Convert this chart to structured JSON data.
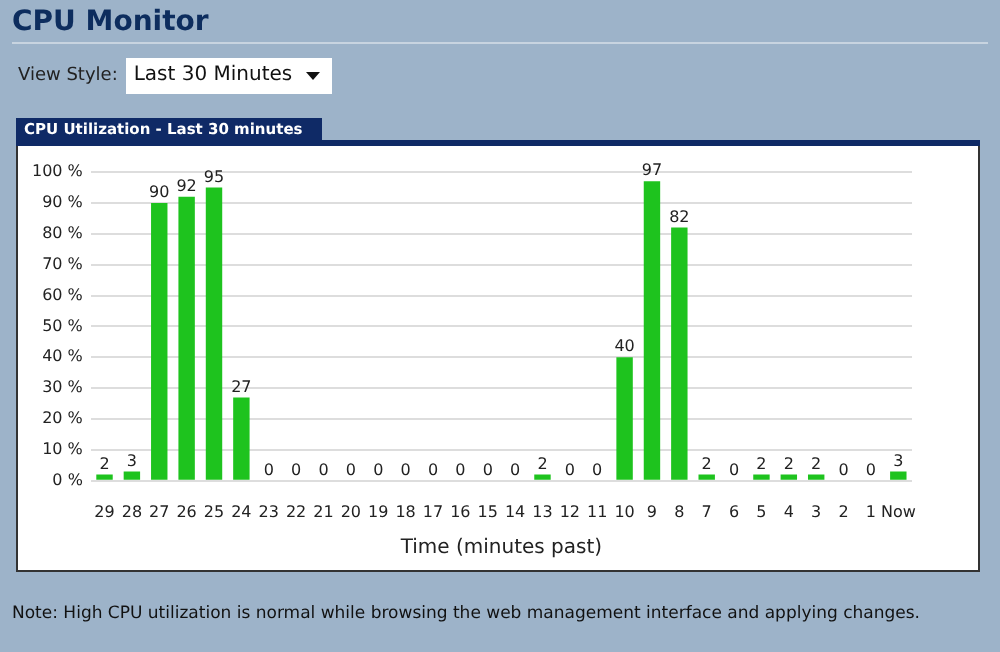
{
  "chart_data": {
    "type": "bar",
    "title": "CPU Monitor",
    "subtitle": "CPU Utilization - Last 30 minutes",
    "xlabel": "Time (minutes past)",
    "annotations": [
      "View Style:",
      "Last 30 Minutes",
      "Note: High CPU utilization is normal while browsing the web management interface and applying changes."
    ],
    "categories": [
      "29",
      "28",
      "27",
      "26",
      "25",
      "24",
      "23",
      "22",
      "21",
      "20",
      "19",
      "18",
      "17",
      "16",
      "15",
      "14",
      "13",
      "12",
      "11",
      "10",
      "9",
      "8",
      "7",
      "6",
      "5",
      "4",
      "3",
      "2",
      "1",
      "Now"
    ],
    "values": [
      2,
      3,
      90,
      92,
      95,
      27,
      0,
      0,
      0,
      0,
      0,
      0,
      0,
      0,
      0,
      0,
      2,
      0,
      0,
      40,
      97,
      82,
      2,
      0,
      2,
      2,
      2,
      0,
      0,
      3
    ],
    "color": "#1ec31e",
    "ylim": [
      0,
      100
    ],
    "yticks": [
      {
        "value": 0,
        "label": "0 %"
      },
      {
        "value": 10,
        "label": "10 %"
      },
      {
        "value": 20,
        "label": "20 %"
      },
      {
        "value": 30,
        "label": "30 %"
      },
      {
        "value": 40,
        "label": "40 %"
      },
      {
        "value": 50,
        "label": "50 %"
      },
      {
        "value": 60,
        "label": "60 %"
      },
      {
        "value": 70,
        "label": "70 %"
      },
      {
        "value": 80,
        "label": "80 %"
      },
      {
        "value": 90,
        "label": "90 %"
      },
      {
        "value": 100,
        "label": "100 %"
      }
    ],
    "grid": "y",
    "data_labels": true,
    "legend": false
  }
}
